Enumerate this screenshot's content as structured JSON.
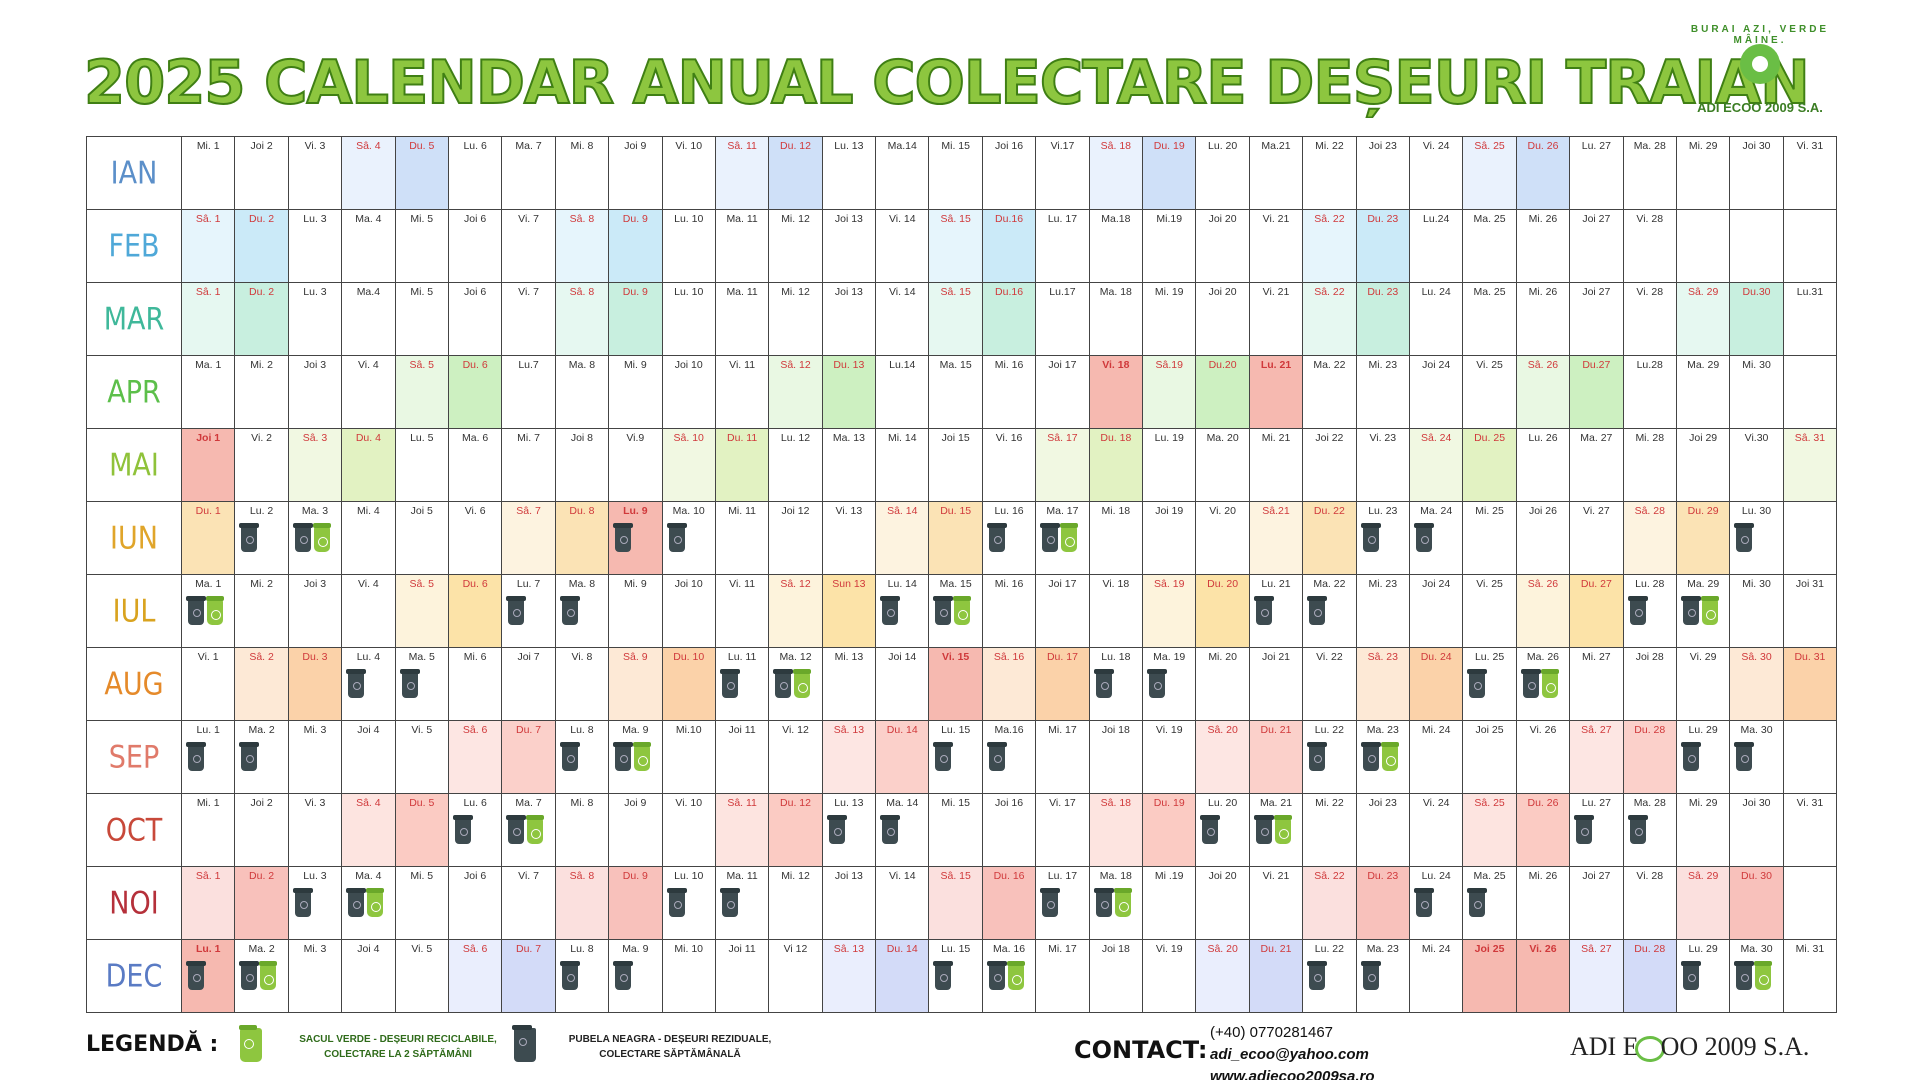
{
  "title": "2025 CALENDAR ANUAL COLECTARE DEȘEURI TRAIAN",
  "logo_top": {
    "tagline": "BURAI AZI, VERDE MÂINE.",
    "name": "ADI ECOO 2009 S.A."
  },
  "colors": {
    "title_green": "#8dc63f",
    "bin_black": "#3d4b50",
    "bag_green": "#8ec63f"
  },
  "months": [
    {
      "name": "IAN",
      "color": "#5b8fc9",
      "weekend_sat": "#eaf2fd",
      "weekend_sun": "#cfe0f8",
      "holiday": "#f7c3b8",
      "days": [
        "Mi. 1",
        "Joi 2",
        "Vi. 3",
        "Sâ. 4",
        "Du. 5",
        "Lu. 6",
        "Ma. 7",
        "Mi. 8",
        "Joi 9",
        "Vi. 10",
        "Sâ. 11",
        "Du. 12",
        "Lu. 13",
        "Ma.14",
        "Mi. 15",
        "Joi 16",
        "Vi.17",
        "Sâ. 18",
        "Du. 19",
        "Lu. 20",
        "Ma.21",
        "Mi. 22",
        "Joi 23",
        "Vi. 24",
        "Sâ. 25",
        "Du. 26",
        "Lu. 27",
        "Ma. 28",
        "Mi. 29",
        "Joi 30",
        "Vi. 31"
      ],
      "weekend": [
        3,
        4,
        10,
        11,
        17,
        18,
        24,
        25
      ],
      "holidays": [],
      "collect": []
    },
    {
      "name": "FEB",
      "color": "#4fa8d8",
      "weekend_sat": "#e6f5fc",
      "weekend_sun": "#cbeaf8",
      "holiday": "#f7c3b8",
      "days": [
        "Sâ. 1",
        "Du. 2",
        "Lu. 3",
        "Ma. 4",
        "Mi. 5",
        "Joi 6",
        "Vi. 7",
        "Sâ. 8",
        "Du. 9",
        "Lu. 10",
        "Ma. 11",
        "Mi. 12",
        "Joi 13",
        "Vi. 14",
        "Sâ. 15",
        "Du.16",
        "Lu. 17",
        "Ma.18",
        "Mi.19",
        "Joi 20",
        "Vi. 21",
        "Sâ. 22",
        "Du. 23",
        "Lu.24",
        "Ma. 25",
        "Mi. 26",
        "Joi 27",
        "Vi. 28"
      ],
      "weekend": [
        0,
        1,
        7,
        8,
        14,
        15,
        21,
        22
      ],
      "holidays": [],
      "collect": []
    },
    {
      "name": "MAR",
      "color": "#3fb89a",
      "weekend_sat": "#e6f8f1",
      "weekend_sun": "#c8efdf",
      "holiday": "#f7c3b8",
      "days": [
        "Sâ. 1",
        "Du. 2",
        "Lu. 3",
        "Ma.4",
        "Mi. 5",
        "Joi 6",
        "Vi. 7",
        "Sâ. 8",
        "Du. 9",
        "Lu. 10",
        "Ma. 11",
        "Mi. 12",
        "Joi 13",
        "Vi. 14",
        "Sâ. 15",
        "Du.16",
        "Lu.17",
        "Ma. 18",
        "Mi. 19",
        "Joi 20",
        "Vi. 21",
        "Sâ. 22",
        "Du. 23",
        "Lu. 24",
        "Ma. 25",
        "Mi. 26",
        "Joi 27",
        "Vi. 28",
        "Sâ. 29",
        "Du.30",
        "Lu.31"
      ],
      "weekend": [
        0,
        1,
        7,
        8,
        14,
        15,
        21,
        22,
        28,
        29
      ],
      "holidays": [],
      "collect": []
    },
    {
      "name": "APR",
      "color": "#5cbf4a",
      "weekend_sat": "#e9f8e3",
      "weekend_sun": "#cdf0c1",
      "holiday": "#f6b9b0",
      "days": [
        "Ma. 1",
        "Mi. 2",
        "Joi 3",
        "Vi. 4",
        "Sâ. 5",
        "Du. 6",
        "Lu.7",
        "Ma. 8",
        "Mi. 9",
        "Joi 10",
        "Vi. 11",
        "Sâ. 12",
        "Du. 13",
        "Lu.14",
        "Ma. 15",
        "Mi. 16",
        "Joi 17",
        "Vi. 18",
        "Sâ.19",
        "Du.20",
        "Lu. 21",
        "Ma. 22",
        "Mi. 23",
        "Joi 24",
        "Vi. 25",
        "Sâ. 26",
        "Du.27",
        "Lu.28",
        "Ma. 29",
        "Mi. 30"
      ],
      "weekend": [
        4,
        5,
        11,
        12,
        18,
        19,
        25,
        26
      ],
      "holidays": [
        17,
        20
      ],
      "collect": []
    },
    {
      "name": "MAI",
      "color": "#8fc23a",
      "weekend_sat": "#f1f8e2",
      "weekend_sun": "#e2f2c2",
      "holiday": "#f6b9b0",
      "days": [
        "Joi 1",
        "Vi. 2",
        "Sâ. 3",
        "Du. 4",
        "Lu. 5",
        "Ma. 6",
        "Mi. 7",
        "Joi 8",
        "Vi.9",
        "Sâ. 10",
        "Du. 11",
        "Lu. 12",
        "Ma. 13",
        "Mi. 14",
        "Joi 15",
        "Vi. 16",
        "Sâ. 17",
        "Du. 18",
        "Lu. 19",
        "Ma. 20",
        "Mi. 21",
        "Joi 22",
        "Vi. 23",
        "Sâ. 24",
        "Du. 25",
        "Lu. 26",
        "Ma. 27",
        "Mi. 28",
        "Joi 29",
        "Vi.30",
        "Sâ. 31"
      ],
      "weekend": [
        2,
        3,
        9,
        10,
        16,
        17,
        23,
        24,
        30
      ],
      "holidays": [
        0
      ],
      "collect": []
    },
    {
      "name": "IUN",
      "color": "#e0a52a",
      "weekend_sat": "#fdf3e0",
      "weekend_sun": "#fbe3b5",
      "holiday": "#f6b9b0",
      "days": [
        "Du. 1",
        "Lu. 2",
        "Ma. 3",
        "Mi. 4",
        "Joi 5",
        "Vi. 6",
        "Sâ. 7",
        "Du. 8",
        "Lu. 9",
        "Ma. 10",
        "Mi. 11",
        "Joi 12",
        "Vi. 13",
        "Sâ. 14",
        "Du. 15",
        "Lu. 16",
        "Ma. 17",
        "Mi. 18",
        "Joi 19",
        "Vi. 20",
        "Sâ.21",
        "Du. 22",
        "Lu. 23",
        "Ma. 24",
        "Mi. 25",
        "Joi 26",
        "Vi. 27",
        "Sâ. 28",
        "Du. 29",
        "Lu. 30"
      ],
      "weekend": [
        0,
        6,
        7,
        13,
        14,
        20,
        21,
        27,
        28
      ],
      "holidays": [
        8
      ],
      "collect": [
        [
          1,
          "n"
        ],
        [
          2,
          "nb"
        ],
        [
          8,
          "n"
        ],
        [
          9,
          "n"
        ],
        [
          15,
          "n"
        ],
        [
          16,
          "nb"
        ],
        [
          22,
          "n"
        ],
        [
          23,
          "n"
        ],
        [
          29,
          "n"
        ]
      ]
    },
    {
      "name": "IUL",
      "color": "#d9a31f",
      "weekend_sat": "#fdf3dc",
      "weekend_sun": "#fce3a8",
      "holiday": "#f6b9b0",
      "days": [
        "Ma. 1",
        "Mi. 2",
        "Joi 3",
        "Vi. 4",
        "Sâ. 5",
        "Du. 6",
        "Lu. 7",
        "Ma. 8",
        "Mi. 9",
        "Joi 10",
        "Vi. 11",
        "Sâ. 12",
        "Sun 13",
        "Lu. 14",
        "Ma. 15",
        "Mi. 16",
        "Joi 17",
        "Vi. 18",
        "Sâ. 19",
        "Du. 20",
        "Lu. 21",
        "Ma. 22",
        "Mi. 23",
        "Joi 24",
        "Vi. 25",
        "Sâ. 26",
        "Du. 27",
        "Lu. 28",
        "Ma. 29",
        "Mi. 30",
        "Joi 31"
      ],
      "weekend": [
        4,
        5,
        11,
        12,
        18,
        19,
        25,
        26
      ],
      "holidays": [],
      "collect": [
        [
          0,
          "nb"
        ],
        [
          6,
          "n"
        ],
        [
          7,
          "n"
        ],
        [
          13,
          "n"
        ],
        [
          14,
          "nb"
        ],
        [
          20,
          "n"
        ],
        [
          21,
          "n"
        ],
        [
          27,
          "n"
        ],
        [
          28,
          "nb"
        ]
      ]
    },
    {
      "name": "AUG",
      "color": "#e58a2a",
      "weekend_sat": "#fde9d6",
      "weekend_sun": "#fbd2a9",
      "holiday": "#f6b9b0",
      "days": [
        "Vi. 1",
        "Sâ. 2",
        "Du. 3",
        "Lu. 4",
        "Ma. 5",
        "Mi. 6",
        "Joi 7",
        "Vi. 8",
        "Sâ. 9",
        "Du. 10",
        "Lu. 11",
        "Ma. 12",
        "Mi. 13",
        "Joi 14",
        "Vi. 15",
        "Sâ. 16",
        "Du. 17",
        "Lu. 18",
        "Ma. 19",
        "Mi. 20",
        "Joi 21",
        "Vi. 22",
        "Sâ. 23",
        "Du. 24",
        "Lu. 25",
        "Ma. 26",
        "Mi. 27",
        "Joi 28",
        "Vi. 29",
        "Sâ. 30",
        "Du. 31"
      ],
      "weekend": [
        1,
        2,
        8,
        9,
        15,
        16,
        22,
        23,
        29,
        30
      ],
      "holidays": [
        14
      ],
      "collect": [
        [
          3,
          "n"
        ],
        [
          4,
          "n"
        ],
        [
          10,
          "n"
        ],
        [
          11,
          "nb"
        ],
        [
          17,
          "n"
        ],
        [
          18,
          "n"
        ],
        [
          24,
          "n"
        ],
        [
          25,
          "nb"
        ]
      ]
    },
    {
      "name": "SEP",
      "color": "#e07a6a",
      "weekend_sat": "#fde6e3",
      "weekend_sun": "#fbd0ca",
      "holiday": "#f6b9b0",
      "days": [
        "Lu. 1",
        "Ma. 2",
        "Mi. 3",
        "Joi 4",
        "Vi. 5",
        "Sâ. 6",
        "Du. 7",
        "Lu. 8",
        "Ma. 9",
        "Mi.10",
        "Joi 11",
        "Vi. 12",
        "Sâ. 13",
        "Du. 14",
        "Lu. 15",
        "Ma.16",
        "Mi. 17",
        "Joi 18",
        "Vi. 19",
        "Sâ. 20",
        "Du. 21",
        "Lu. 22",
        "Ma. 23",
        "Mi. 24",
        "Joi 25",
        "Vi. 26",
        "Sâ. 27",
        "Du. 28",
        "Lu. 29",
        "Ma. 30"
      ],
      "weekend": [
        5,
        6,
        12,
        13,
        19,
        20,
        26,
        27
      ],
      "holidays": [],
      "collect": [
        [
          0,
          "n"
        ],
        [
          1,
          "n"
        ],
        [
          7,
          "n"
        ],
        [
          8,
          "nb"
        ],
        [
          14,
          "n"
        ],
        [
          15,
          "n"
        ],
        [
          21,
          "n"
        ],
        [
          22,
          "nb"
        ],
        [
          28,
          "n"
        ],
        [
          29,
          "n"
        ]
      ]
    },
    {
      "name": "OCT",
      "color": "#c8493a",
      "weekend_sat": "#fde4e0",
      "weekend_sun": "#fbcbc3",
      "holiday": "#f6b9b0",
      "days": [
        "Mi. 1",
        "Joi 2",
        "Vi. 3",
        "Sâ. 4",
        "Du. 5",
        "Lu. 6",
        "Ma. 7",
        "Mi. 8",
        "Joi 9",
        "Vi. 10",
        "Sâ. 11",
        "Du. 12",
        "Lu. 13",
        "Ma. 14",
        "Mi. 15",
        "Joi 16",
        "Vi. 17",
        "Sâ. 18",
        "Du. 19",
        "Lu. 20",
        "Ma. 21",
        "Mi. 22",
        "Joi 23",
        "Vi. 24",
        "Sâ. 25",
        "Du. 26",
        "Lu. 27",
        "Ma. 28",
        "Mi. 29",
        "Joi 30",
        "Vi. 31"
      ],
      "weekend": [
        3,
        4,
        10,
        11,
        17,
        18,
        24,
        25
      ],
      "holidays": [],
      "collect": [
        [
          5,
          "n"
        ],
        [
          6,
          "nb"
        ],
        [
          12,
          "n"
        ],
        [
          13,
          "n"
        ],
        [
          19,
          "n"
        ],
        [
          20,
          "nb"
        ],
        [
          26,
          "n"
        ],
        [
          27,
          "n"
        ]
      ]
    },
    {
      "name": "NOI",
      "color": "#b5303a",
      "weekend_sat": "#fbe0de",
      "weekend_sun": "#f8c1bb",
      "holiday": "#f6b9b0",
      "days": [
        "Sâ. 1",
        "Du. 2",
        "Lu. 3",
        "Ma. 4",
        "Mi. 5",
        "Joi 6",
        "Vi. 7",
        "Sâ. 8",
        "Du. 9",
        "Lu. 10",
        "Ma. 11",
        "Mi. 12",
        "Joi 13",
        "Vi. 14",
        "Sâ. 15",
        "Du. 16",
        "Lu. 17",
        "Ma. 18",
        "Mi .19",
        "Joi 20",
        "Vi. 21",
        "Sâ. 22",
        "Du. 23",
        "Lu. 24",
        "Ma. 25",
        "Mi. 26",
        "Joi 27",
        "Vi. 28",
        "Sâ. 29",
        "Du. 30"
      ],
      "weekend": [
        0,
        1,
        7,
        8,
        14,
        15,
        21,
        22,
        28,
        29
      ],
      "holidays": [],
      "collect": [
        [
          2,
          "n"
        ],
        [
          3,
          "nb"
        ],
        [
          9,
          "n"
        ],
        [
          10,
          "n"
        ],
        [
          16,
          "n"
        ],
        [
          17,
          "nb"
        ],
        [
          23,
          "n"
        ],
        [
          24,
          "n"
        ]
      ]
    },
    {
      "name": "DEC",
      "color": "#5a7bc4",
      "weekend_sat": "#eaeefd",
      "weekend_sun": "#d3dbf8",
      "holiday": "#f6b9b0",
      "days": [
        "Lu. 1",
        "Ma. 2",
        "Mi. 3",
        "Joi 4",
        "Vi. 5",
        "Sâ. 6",
        "Du. 7",
        "Lu. 8",
        "Ma. 9",
        "Mi. 10",
        "Joi 11",
        "Vi 12",
        "Sâ. 13",
        "Du. 14",
        "Lu. 15",
        "Ma. 16",
        "Mi. 17",
        "Joi 18",
        "Vi. 19",
        "Sâ. 20",
        "Du. 21",
        "Lu. 22",
        "Ma. 23",
        "Mi. 24",
        "Joi 25",
        "Vi. 26",
        "Sâ. 27",
        "Du. 28",
        "Lu. 29",
        "Ma. 30",
        "Mi. 31"
      ],
      "weekend": [
        5,
        6,
        12,
        13,
        19,
        20,
        26,
        27
      ],
      "holidays": [
        0,
        24,
        25
      ],
      "collect": [
        [
          0,
          "n"
        ],
        [
          1,
          "nb"
        ],
        [
          7,
          "n"
        ],
        [
          8,
          "n"
        ],
        [
          14,
          "n"
        ],
        [
          15,
          "nb"
        ],
        [
          21,
          "n"
        ],
        [
          22,
          "n"
        ],
        [
          28,
          "n"
        ],
        [
          29,
          "nb"
        ]
      ]
    }
  ],
  "legend": {
    "title": "LEGENDĂ :",
    "bag_text_1": "SACUL VERDE - DEȘEURI RECICLABILE,",
    "bag_text_2": "COLECTARE LA 2 SĂPTĂMÂNI",
    "bin_text_1": "PUBELA NEAGRA - DEȘEURI REZIDUALE,",
    "bin_text_2": "COLECTARE SĂPTĂMÂNALĂ"
  },
  "contact": {
    "title": "CONTACT:",
    "phone": "(+40) 0770281467",
    "email": "adi_ecoo@yahoo.com",
    "web": "www.adiecoo2009sa.ro"
  },
  "logo_bottom": {
    "pre": "ADI E",
    "post": "OO 2009 S.A."
  }
}
